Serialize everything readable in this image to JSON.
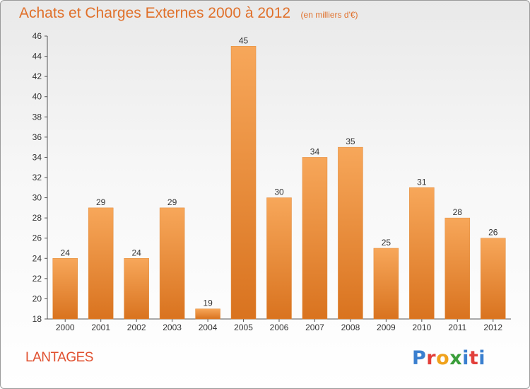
{
  "header": {
    "title": "Achats et Charges Externes 2000 à 2012",
    "subtitle": "(en milliers d'€)"
  },
  "footer": {
    "commune": "LANTAGES",
    "logo_text": "Proxiti"
  },
  "colors": {
    "title": "#e0702a",
    "bar_top": "#f7a75a",
    "bar_bottom": "#d9731f",
    "axis": "#555555"
  },
  "chart_data": {
    "type": "bar",
    "title": "Achats et Charges Externes 2000 à 2012",
    "subtitle": "(en milliers d'€)",
    "xlabel": "",
    "ylabel": "",
    "categories": [
      "2000",
      "2001",
      "2002",
      "2003",
      "2004",
      "2005",
      "2006",
      "2007",
      "2008",
      "2009",
      "2010",
      "2011",
      "2012"
    ],
    "values": [
      24,
      29,
      24,
      29,
      19,
      45,
      30,
      34,
      35,
      25,
      31,
      28,
      26
    ],
    "ylim": [
      18,
      46
    ],
    "yticks": [
      18,
      20,
      22,
      24,
      26,
      28,
      30,
      32,
      34,
      36,
      38,
      40,
      42,
      44,
      46
    ],
    "grid": false,
    "data_labels": true
  }
}
